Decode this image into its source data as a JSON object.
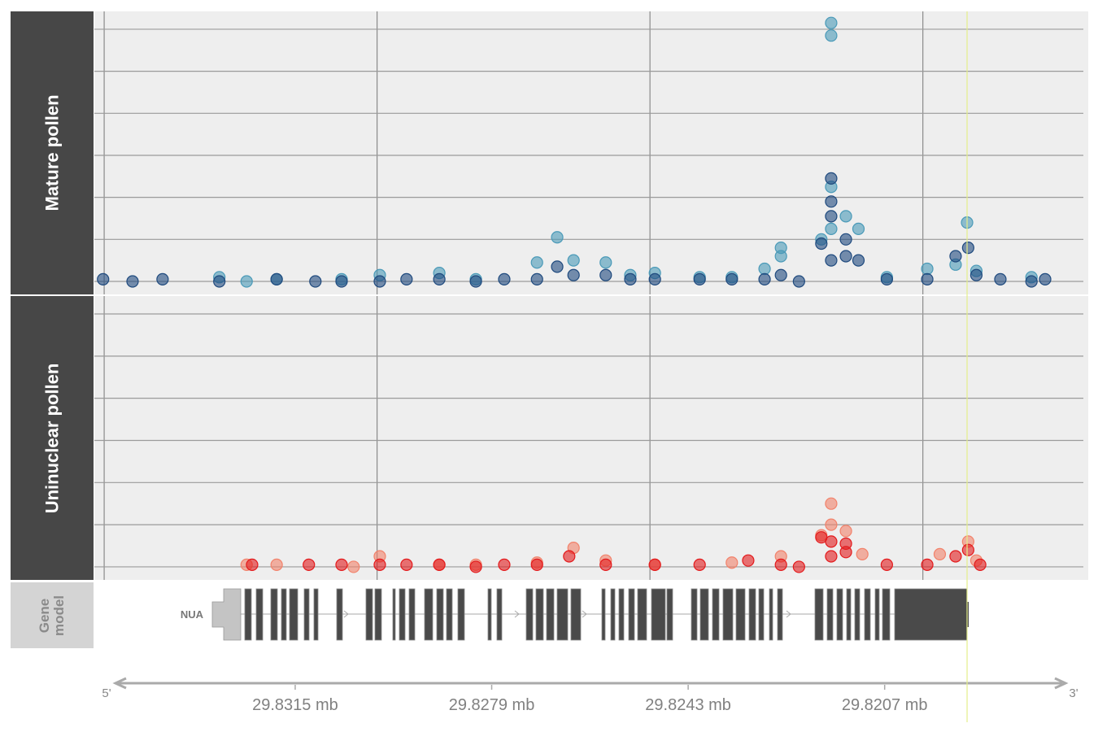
{
  "chart_data": [
    {
      "type": "scatter",
      "panel_label": "Mature pollen",
      "xlim": [
        29.83518,
        29.81697
      ],
      "ylim": [
        -6.2,
        128.5
      ],
      "yticks": [
        0,
        20,
        40,
        60,
        80,
        100,
        120
      ],
      "x_gridlines": [
        29.835,
        29.83,
        29.825,
        29.82
      ],
      "grid": true,
      "series": [
        {
          "color": "#4a9ab8",
          "x": [
            29.83239,
            29.83289,
            29.83184,
            29.83065,
            29.82995,
            29.82886,
            29.82819,
            29.82707,
            29.8267,
            29.8264,
            29.82581,
            29.82536,
            29.82491,
            29.82409,
            29.8235,
            29.8229,
            29.8226,
            29.8226,
            29.82186,
            29.82168,
            29.82168,
            29.82168,
            29.82168,
            29.82141,
            29.82118,
            29.82066,
            29.81992,
            29.8194,
            29.81919,
            29.81902,
            29.81801
          ],
          "values": [
            0,
            2,
            1,
            1,
            3,
            4,
            1,
            9,
            21,
            10,
            9,
            3,
            4,
            2,
            2,
            6,
            16,
            12,
            20,
            123,
            117,
            45,
            25,
            31,
            25,
            2,
            6,
            8,
            28,
            5,
            2
          ]
        },
        {
          "color": "#1f4a7e",
          "x": [
            29.83502,
            29.83448,
            29.83393,
            29.83289,
            29.83184,
            29.83113,
            29.83065,
            29.82995,
            29.82946,
            29.82886,
            29.82819,
            29.82767,
            29.82707,
            29.8267,
            29.8264,
            29.82581,
            29.82536,
            29.82491,
            29.82409,
            29.8235,
            29.8229,
            29.8226,
            29.82227,
            29.82186,
            29.82168,
            29.82168,
            29.82168,
            29.82168,
            29.82141,
            29.82141,
            29.82118,
            29.82066,
            29.81992,
            29.8194,
            29.81917,
            29.81902,
            29.81858,
            29.81801,
            29.81776
          ],
          "values": [
            1,
            0,
            1,
            0,
            1,
            0,
            0,
            0,
            1,
            1,
            0,
            1,
            1,
            7,
            3,
            3,
            1,
            1,
            1,
            1,
            1,
            3,
            0,
            18,
            49,
            38,
            31,
            10,
            20,
            12,
            10,
            1,
            1,
            12,
            16,
            3,
            1,
            0,
            1
          ]
        }
      ]
    },
    {
      "type": "scatter",
      "panel_label": "Uninuclear pollen",
      "xlim": [
        29.83518,
        29.81697
      ],
      "ylim": [
        -6.2,
        128.5
      ],
      "yticks": [
        0,
        20,
        40,
        60,
        80,
        100,
        120
      ],
      "x_gridlines": [
        29.835,
        29.83,
        29.825,
        29.82
      ],
      "grid": true,
      "series": [
        {
          "color": "#f2826b",
          "x": [
            29.83239,
            29.83184,
            29.83043,
            29.82995,
            29.82886,
            29.82819,
            29.82707,
            29.8264,
            29.82581,
            29.82491,
            29.8235,
            29.8226,
            29.82186,
            29.82168,
            29.82168,
            29.82141,
            29.82111,
            29.81969,
            29.81917,
            29.81902
          ],
          "values": [
            1,
            1,
            0,
            5,
            1,
            1,
            2,
            9,
            3,
            1,
            2,
            5,
            15,
            30,
            20,
            17,
            6,
            6,
            12,
            3
          ]
        },
        {
          "color": "#e31a1c",
          "x": [
            29.83229,
            29.83125,
            29.83065,
            29.82995,
            29.82946,
            29.82886,
            29.82819,
            29.82767,
            29.82707,
            29.82648,
            29.82581,
            29.82491,
            29.82409,
            29.8232,
            29.8226,
            29.82227,
            29.82186,
            29.82168,
            29.82168,
            29.82141,
            29.82141,
            29.82066,
            29.81992,
            29.8194,
            29.81917,
            29.81895
          ],
          "values": [
            1,
            1,
            1,
            1,
            1,
            1,
            0,
            1,
            1,
            5,
            1,
            1,
            1,
            3,
            1,
            0,
            14,
            12,
            5,
            11,
            7,
            1,
            1,
            5,
            8,
            1
          ]
        }
      ]
    }
  ],
  "gene_model": {
    "title": "Gene model",
    "gene": "NUA"
  },
  "genome_axis": {
    "xlim": [
      29.83518,
      29.81697
    ],
    "xticks": [
      {
        "value": 29.8315,
        "label": "29.8315 mb"
      },
      {
        "value": 29.8279,
        "label": "29.8279 mb"
      },
      {
        "value": 29.8243,
        "label": "29.8243 mb"
      },
      {
        "value": 29.8207,
        "label": "29.8207 mb"
      }
    ],
    "left_end": "5'",
    "right_end": "3'",
    "highlight_x": 29.81919
  }
}
